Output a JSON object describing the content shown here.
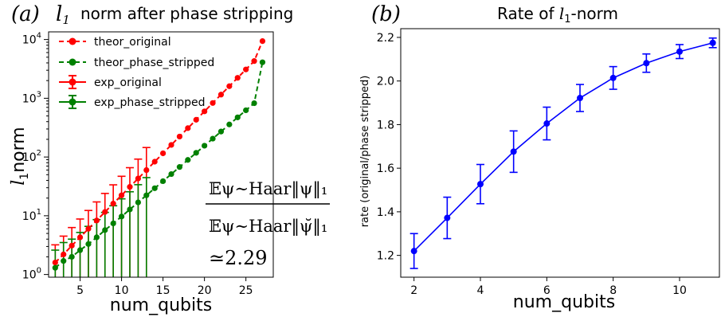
{
  "chart_data": [
    {
      "type": "line",
      "panel_label": "(a)",
      "title_symbol": "l1",
      "title_text": "norm after phase stripping",
      "xlabel": "num_qubits",
      "ylabel_symbol": "l1",
      "ylabel_text": "norm",
      "yscale": "log",
      "xlim": [
        1.2,
        28.3
      ],
      "ylim": [
        0.9,
        13500
      ],
      "x_ticks": [
        5,
        10,
        15,
        20,
        25
      ],
      "y_ticks": [
        {
          "value": 1,
          "base": "10",
          "exp": "0"
        },
        {
          "value": 10,
          "base": "10",
          "exp": "1"
        },
        {
          "value": 100,
          "base": "10",
          "exp": "2"
        },
        {
          "value": 1000,
          "base": "10",
          "exp": "3"
        },
        {
          "value": 10000,
          "base": "10",
          "exp": "4"
        }
      ],
      "legend_position": "upper-left",
      "series": [
        {
          "name": "theor_original",
          "color": "#ff0000",
          "style": "dashed-marker",
          "x": [
            2,
            3,
            4,
            5,
            6,
            7,
            8,
            9,
            10,
            11,
            12,
            13,
            14,
            15,
            16,
            17,
            18,
            19,
            20,
            21,
            22,
            23,
            24,
            25,
            26,
            27
          ],
          "y": [
            1.6,
            2.2,
            3.1,
            4.3,
            6.0,
            8.3,
            11.6,
            16.1,
            22.3,
            31.0,
            43.1,
            59.9,
            83.2,
            115.6,
            160.6,
            223.1,
            309.9,
            430.5,
            598.1,
            830.9,
            1154.2,
            1603.5,
            2227.6,
            3094.6,
            4299.1,
            9400
          ]
        },
        {
          "name": "theor_phase_stripped",
          "color": "#008000",
          "style": "dashed-marker",
          "x": [
            2,
            3,
            4,
            5,
            6,
            7,
            8,
            9,
            10,
            11,
            12,
            13,
            14,
            15,
            16,
            17,
            18,
            19,
            20,
            21,
            22,
            23,
            24,
            25,
            26,
            27
          ],
          "y": [
            1.3,
            1.7,
            2.0,
            2.6,
            3.3,
            4.3,
            5.7,
            7.4,
            9.7,
            12.8,
            16.9,
            22.3,
            29.4,
            38.8,
            51.2,
            67.6,
            89.3,
            117.9,
            155.6,
            205.4,
            271.2,
            358.1,
            472.9,
            624.3,
            824.3,
            4100
          ]
        },
        {
          "name": "exp_original",
          "color": "#ff0000",
          "style": "errorbar",
          "x": [
            2,
            3,
            4,
            5,
            6,
            7,
            8,
            9,
            10,
            11,
            12,
            13
          ],
          "y": [
            1.6,
            2.2,
            3.1,
            4.3,
            6.0,
            8.3,
            11.6,
            16.1,
            22.3,
            31.0,
            43.1,
            59.9
          ],
          "yerr_high": [
            3.2,
            4.5,
            6.3,
            8.8,
            12.3,
            17.2,
            24.0,
            33.6,
            47.0,
            65.8,
            92.1,
            145
          ]
        },
        {
          "name": "exp_phase_stripped",
          "color": "#008000",
          "style": "errorbar",
          "x": [
            2,
            3,
            4,
            5,
            6,
            7,
            8,
            9,
            10,
            11,
            12,
            13
          ],
          "y": [
            1.3,
            1.7,
            2.0,
            2.6,
            3.3,
            4.3,
            5.7,
            7.4,
            9.7,
            12.8,
            16.9,
            22.3
          ],
          "yerr_high": [
            2.6,
            3.5,
            4.0,
            5.2,
            6.6,
            8.6,
            11.4,
            14.8,
            19.4,
            25.6,
            33.8,
            44.6
          ]
        }
      ],
      "annotation": {
        "numerator": "𝔼ψ∼Haar‖ψ‖₁",
        "denominator": "𝔼ψ∼Haar‖ψ̆‖₁",
        "result": "≃2.29"
      }
    },
    {
      "type": "line",
      "panel_label": "(b)",
      "title_text_before": "Rate of",
      "title_symbol": "l1",
      "title_text_after": "-norm",
      "xlabel": "num_qubits",
      "ylabel": "rate (original/phase stripped)",
      "xlim": [
        1.6,
        11.2
      ],
      "ylim": [
        1.1,
        2.24
      ],
      "x_ticks": [
        2,
        4,
        6,
        8,
        10
      ],
      "y_ticks": [
        "1.2",
        "1.4",
        "1.6",
        "1.8",
        "2.0",
        "2.2"
      ],
      "series": [
        {
          "color": "#0000ff",
          "x": [
            2,
            3,
            4,
            5,
            6,
            7,
            8,
            9,
            10,
            11
          ],
          "y": [
            1.22,
            1.372,
            1.527,
            1.676,
            1.805,
            1.922,
            2.014,
            2.082,
            2.135,
            2.175
          ],
          "yerr": [
            0.08,
            0.095,
            0.09,
            0.095,
            0.075,
            0.062,
            0.052,
            0.042,
            0.032,
            0.022
          ]
        }
      ]
    }
  ]
}
